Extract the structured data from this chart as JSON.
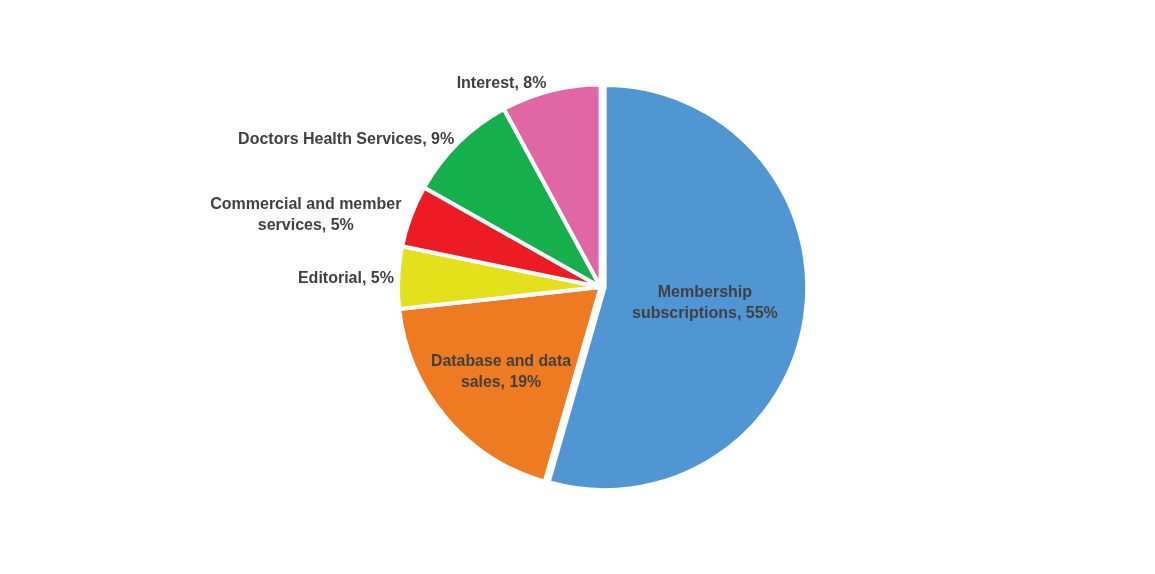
{
  "chart_data": {
    "type": "pie",
    "categories": [
      "Membership subscriptions",
      "Database and data sales",
      "Editorial",
      "Commercial and member services",
      "Doctors Health Services",
      "Interest"
    ],
    "values": [
      55,
      19,
      5,
      5,
      9,
      8
    ],
    "value_labels": [
      "55%",
      "19%",
      "5%",
      "5%",
      "9%",
      "8%"
    ],
    "colors": [
      "#5096d2",
      "#ee7b22",
      "#e2e11b",
      "#ed1c24",
      "#15af4b",
      "#e066a6"
    ],
    "legend": false
  }
}
